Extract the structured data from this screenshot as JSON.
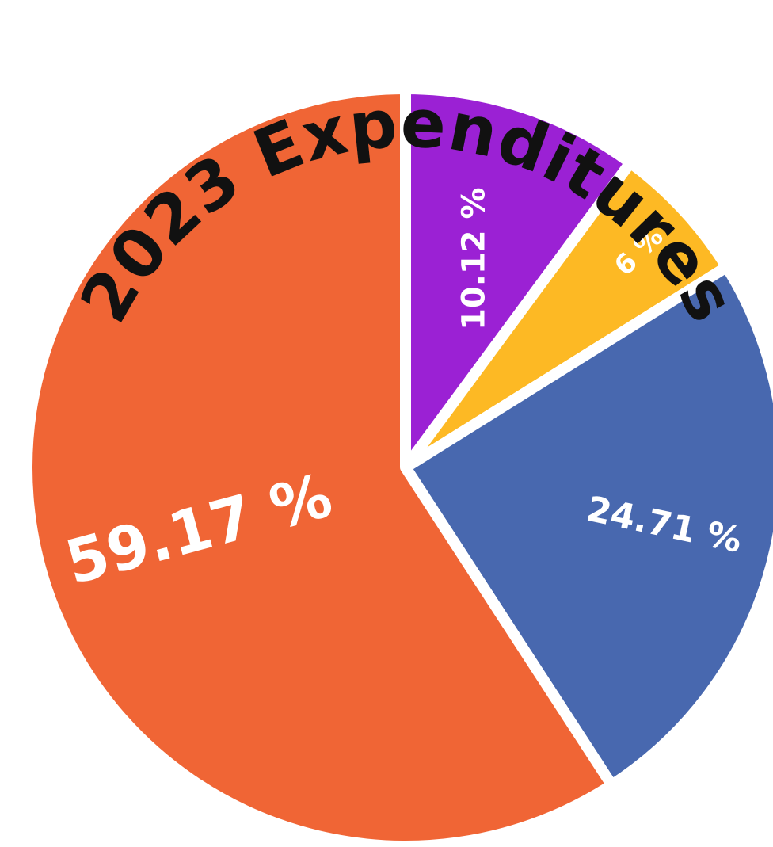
{
  "chart_data": {
    "type": "pie",
    "title": "2023 Expenditures",
    "start_angle_deg": 0,
    "direction": "clockwise",
    "slices": [
      {
        "label": "10.12 %",
        "value": 10.12,
        "color": "#9b21d4"
      },
      {
        "label": "6 %",
        "value": 6.0,
        "color": "#fdb924"
      },
      {
        "label": "24.71 %",
        "value": 24.71,
        "color": "#4868af"
      },
      {
        "label": "59.17 %",
        "value": 59.17,
        "color": "#f06535"
      }
    ]
  }
}
